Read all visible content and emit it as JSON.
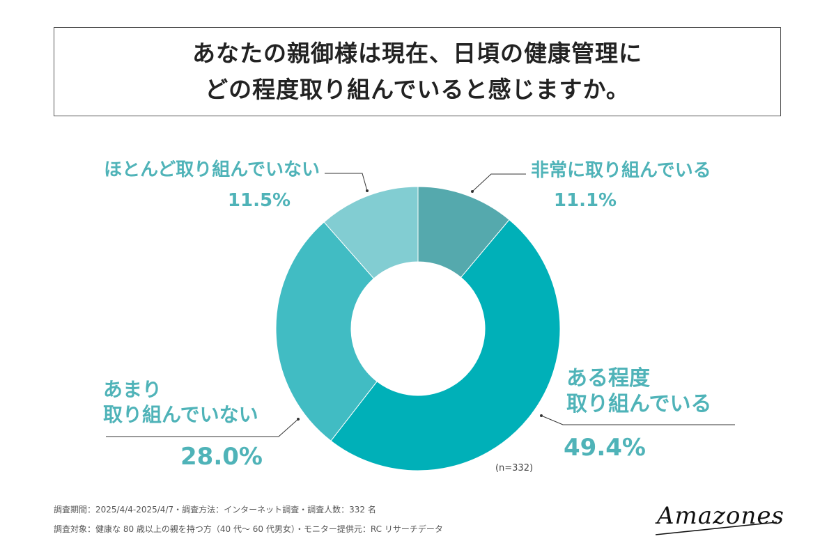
{
  "title": {
    "line1": "あなたの親御様は現在、日頃の健康管理に",
    "line2": "どの程度取り組んでいると感じますか。"
  },
  "chart_data": {
    "type": "pie",
    "title": "あなたの親御様は現在、日頃の健康管理にどの程度取り組んでいると感じますか。",
    "sample_note": "(n=332)",
    "slices": [
      {
        "label": "非常に取り組んでいる",
        "value": 11.1,
        "value_label": "11.1%",
        "color": "#55a9ad"
      },
      {
        "label": "ある程度取り組んでいる",
        "label_lines": [
          "ある程度",
          "取り組んでいる"
        ],
        "value": 49.4,
        "value_label": "49.4%",
        "color": "#00b0b8"
      },
      {
        "label": "あまり取り組んでいない",
        "label_lines": [
          "あまり",
          "取り組んでいない"
        ],
        "value": 28.0,
        "value_label": "28.0%",
        "color": "#41bcc3"
      },
      {
        "label": "ほとんど取り組んでいない",
        "value": 11.5,
        "value_label": "11.5%",
        "color": "#82cdd2"
      }
    ]
  },
  "footer": {
    "line1": "調査期間：2025/4/4-2025/4/7・調査方法：インターネット調査・調査人数：332 名",
    "line2": "調査対象：健康な 80 歳以上の親を持つ方（40 代～ 60 代男女）・モニター提供元：RC リサーチデータ"
  },
  "logo": {
    "text": "Amazones"
  },
  "colors": {
    "label_text": "#4fb3b8",
    "leader_line": "#333333"
  }
}
